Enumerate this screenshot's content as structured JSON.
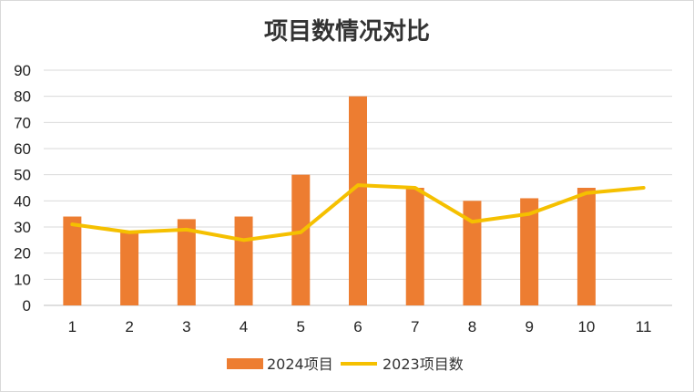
{
  "chart_data": {
    "type": "bar",
    "title": "项目数情况对比",
    "categories": [
      "1",
      "2",
      "3",
      "4",
      "5",
      "6",
      "7",
      "8",
      "9",
      "10",
      "11"
    ],
    "ylim": [
      0,
      90
    ],
    "yticks": [
      "0",
      "10",
      "20",
      "30",
      "40",
      "50",
      "60",
      "70",
      "80",
      "90"
    ],
    "grid": true,
    "legend_position": "bottom",
    "series": [
      {
        "name": "2024项目",
        "kind": "bar",
        "color": "#ED7D31",
        "values": [
          34,
          28,
          33,
          34,
          50,
          80,
          45,
          40,
          41,
          45,
          null
        ]
      },
      {
        "name": "2023项目数",
        "kind": "line",
        "color": "#F5C000",
        "values": [
          31,
          28,
          29,
          25,
          28,
          46,
          45,
          32,
          35,
          43,
          45
        ]
      }
    ]
  }
}
